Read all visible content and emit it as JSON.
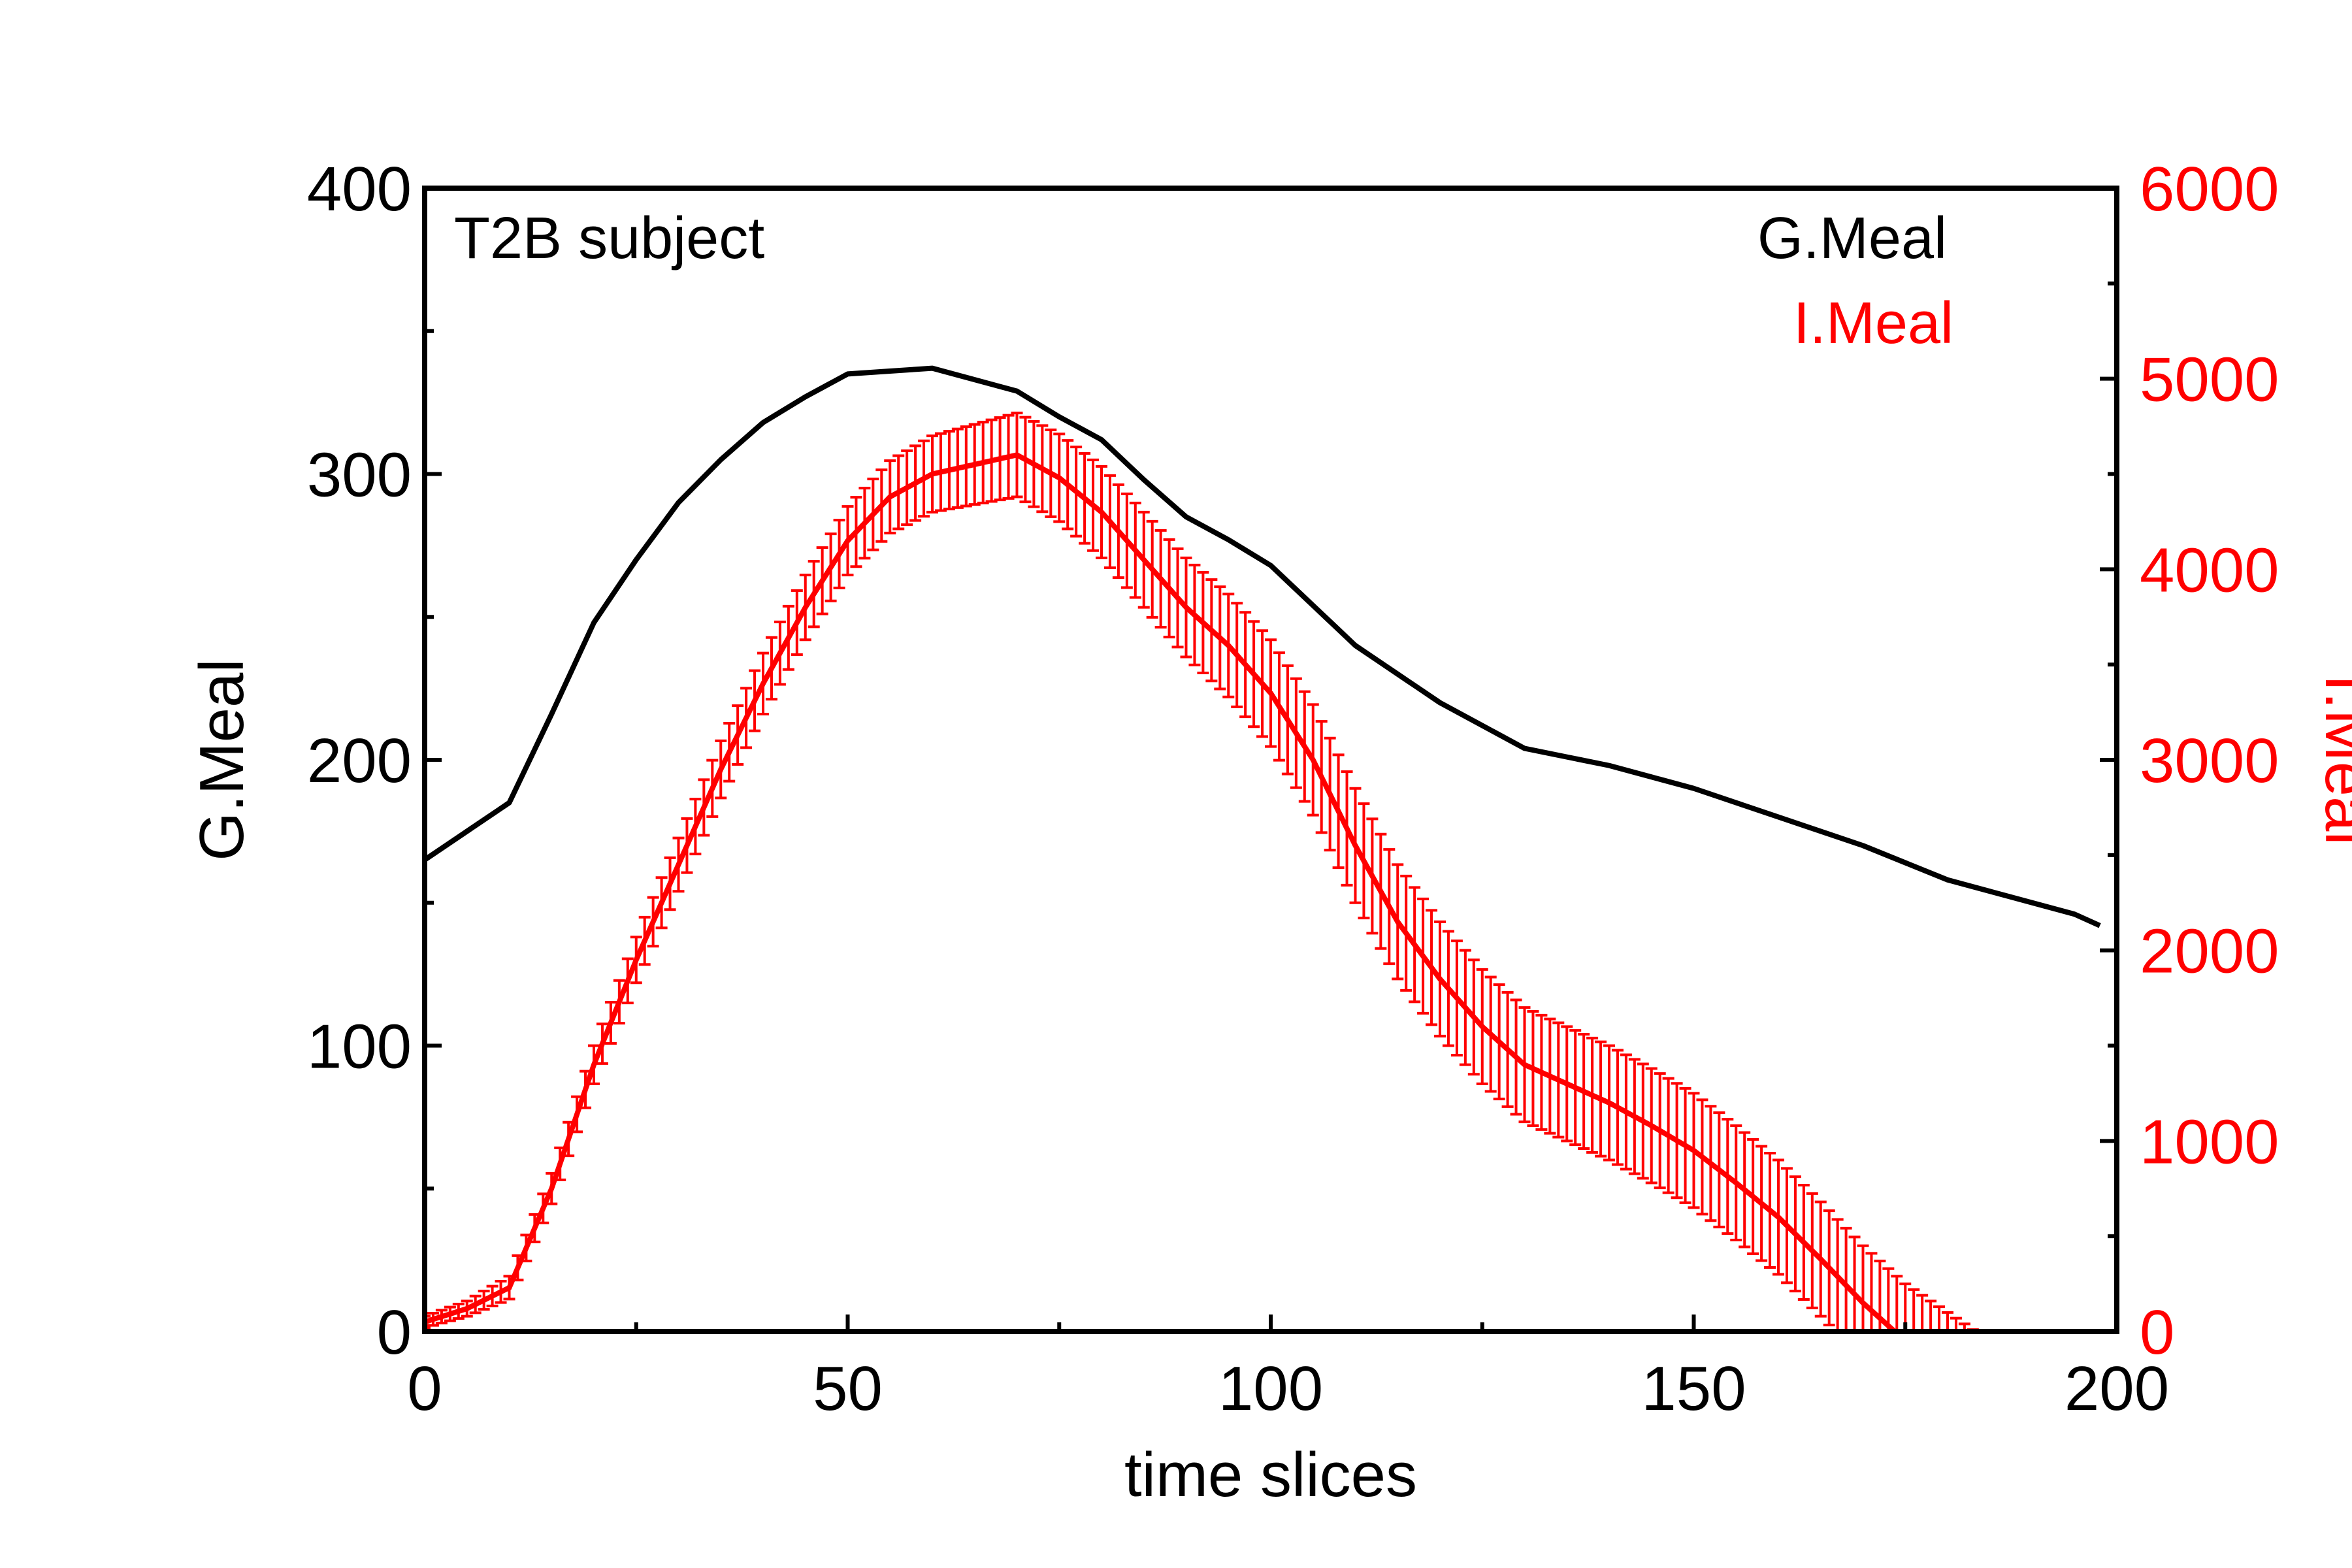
{
  "chart_data": {
    "type": "line",
    "annotation": "T2B subject",
    "xlabel": "time slices",
    "ylabel": "G.Meal",
    "y2label": "I.Meal",
    "xlim": [
      0,
      200
    ],
    "ylim": [
      0,
      400
    ],
    "y2lim": [
      0,
      6000
    ],
    "x_ticks": [
      0,
      50,
      100,
      150,
      200
    ],
    "y_ticks": [
      0,
      100,
      200,
      300,
      400
    ],
    "y2_ticks": [
      0,
      1000,
      2000,
      3000,
      4000,
      5000,
      6000
    ],
    "grid": false,
    "legend_position": "top-right",
    "colors": {
      "g_meal": "#000000",
      "i_meal": "#ff0000"
    },
    "series": [
      {
        "name": "G.Meal",
        "axis": "left",
        "x": [
          0,
          5,
          10,
          15,
          20,
          25,
          30,
          35,
          40,
          45,
          50,
          55,
          60,
          65,
          70,
          75,
          80,
          85,
          90,
          95,
          100,
          105,
          110,
          115,
          120,
          125,
          130,
          135,
          140,
          145,
          150,
          155,
          160,
          165,
          170,
          175,
          180,
          185,
          190,
          195,
          198
        ],
        "values": [
          165,
          175,
          185,
          216,
          248,
          270,
          290,
          305,
          318,
          327,
          335,
          336,
          337,
          333,
          329,
          320,
          312,
          298,
          285,
          277,
          268,
          254,
          240,
          230,
          220,
          212,
          204,
          201,
          198,
          194,
          190,
          185,
          180,
          175,
          170,
          164,
          158,
          154,
          150,
          146,
          142
        ]
      },
      {
        "name": "I.Meal",
        "axis": "right",
        "x": [
          0,
          5,
          10,
          15,
          20,
          25,
          30,
          35,
          40,
          45,
          50,
          55,
          60,
          65,
          70,
          75,
          80,
          85,
          90,
          95,
          100,
          105,
          110,
          115,
          120,
          125,
          130,
          135,
          140,
          145,
          150,
          155,
          160,
          165,
          170,
          175,
          180,
          185
        ],
        "values": [
          50,
          120,
          230,
          750,
          1400,
          1950,
          2450,
          2950,
          3400,
          3800,
          4150,
          4380,
          4500,
          4550,
          4600,
          4480,
          4300,
          4050,
          3800,
          3600,
          3350,
          3000,
          2550,
          2150,
          1850,
          1600,
          1400,
          1300,
          1200,
          1080,
          950,
          780,
          600,
          380,
          150,
          -50,
          -200,
          -350
        ],
        "errors": [
          30,
          40,
          60,
          80,
          100,
          120,
          140,
          150,
          160,
          170,
          180,
          190,
          200,
          210,
          220,
          230,
          240,
          250,
          260,
          270,
          280,
          290,
          300,
          300,
          300,
          300,
          300,
          300,
          300,
          300,
          300,
          300,
          300,
          300,
          300,
          300,
          300,
          300
        ]
      }
    ]
  }
}
